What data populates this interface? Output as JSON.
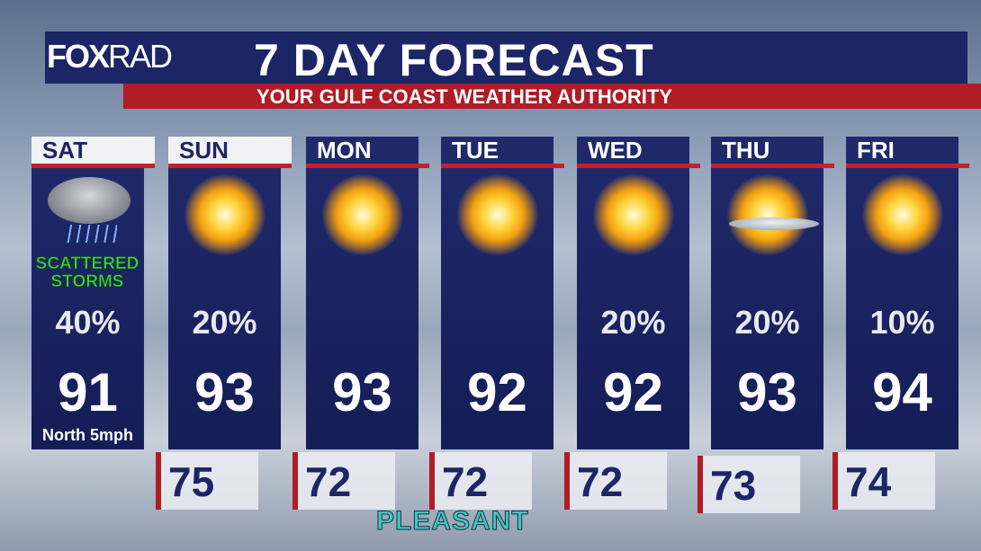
{
  "header": {
    "logo": {
      "main": "FOX",
      "sub": "RAD"
    },
    "title": "7 DAY FORECAST",
    "subtitle": "YOUR GULF COAST WEATHER AUTHORITY"
  },
  "days": [
    {
      "day": "SAT",
      "icon": "storm",
      "condition": [
        "SCATTERED",
        "STORMS"
      ],
      "rain": "40%",
      "high": "91",
      "wind": "North 5mph"
    },
    {
      "day": "SUN",
      "icon": "sun",
      "rain": "20%",
      "high": "93"
    },
    {
      "day": "MON",
      "icon": "sun",
      "high": "93"
    },
    {
      "day": "TUE",
      "icon": "sun",
      "high": "92"
    },
    {
      "day": "WED",
      "icon": "sun",
      "rain": "20%",
      "high": "92"
    },
    {
      "day": "THU",
      "icon": "suncloud",
      "rain": "20%",
      "high": "93"
    },
    {
      "day": "FRI",
      "icon": "sun",
      "rain": "10%",
      "high": "94"
    }
  ],
  "lows": [
    "75",
    "72",
    "72",
    "72",
    "73",
    "74"
  ],
  "footer": "PLEASANT"
}
